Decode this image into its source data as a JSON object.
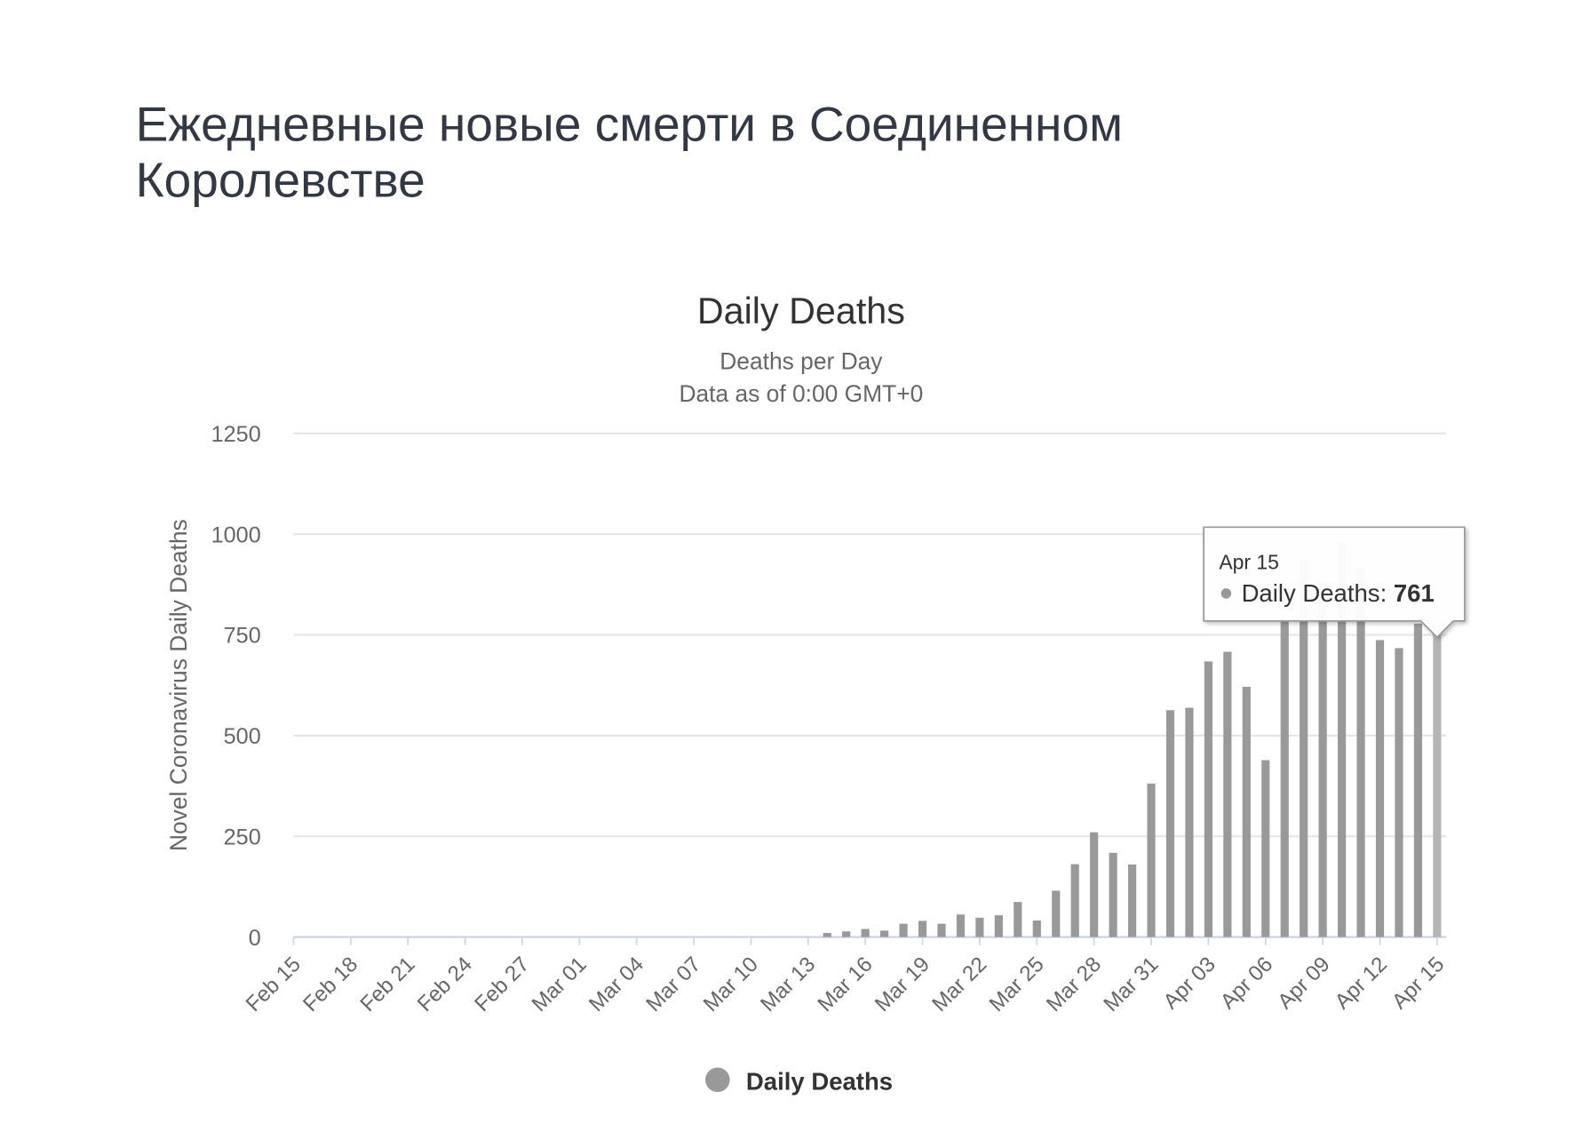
{
  "heading": "Ежедневные новые смерти в Соединенном Королевстве",
  "chart_data": {
    "type": "bar",
    "title": "Daily Deaths",
    "subtitle": [
      "Deaths per Day",
      "Data as of 0:00 GMT+0"
    ],
    "y_label": "Novel Coronavirus Daily Deaths",
    "categories": [
      "Feb 15",
      null,
      null,
      "Feb 18",
      null,
      null,
      "Feb 21",
      null,
      null,
      "Feb 24",
      null,
      null,
      "Feb 27",
      null,
      null,
      "Mar 01",
      null,
      null,
      "Mar 04",
      null,
      null,
      "Mar 07",
      null,
      null,
      "Mar 10",
      null,
      null,
      "Mar 13",
      null,
      null,
      "Mar 16",
      null,
      null,
      "Mar 19",
      null,
      null,
      "Mar 22",
      null,
      null,
      "Mar 25",
      null,
      null,
      "Mar 28",
      null,
      null,
      "Mar 31",
      null,
      null,
      "Apr 03",
      null,
      null,
      "Apr 06",
      null,
      null,
      "Apr 09",
      null,
      null,
      "Apr 12",
      null,
      null,
      "Apr 15"
    ],
    "series": [
      {
        "name": "Daily Deaths",
        "color": "#999999",
        "values": [
          0,
          0,
          0,
          0,
          0,
          0,
          0,
          0,
          0,
          0,
          0,
          0,
          0,
          0,
          0,
          0,
          0,
          0,
          0,
          0,
          0,
          0,
          0,
          0,
          0,
          0,
          0,
          0,
          10,
          14,
          20,
          16,
          33,
          40,
          33,
          56,
          48,
          54,
          87,
          41,
          115,
          181,
          260,
          209,
          180,
          381,
          563,
          569,
          684,
          708,
          621,
          439,
          786,
          938,
          881,
          980,
          917,
          737,
          717,
          778,
          761
        ]
      }
    ],
    "ylim": [
      0,
      1250
    ],
    "yticks": [
      0,
      250,
      500,
      750,
      1000,
      1250
    ],
    "grid": true,
    "legend": "bottom"
  }
}
